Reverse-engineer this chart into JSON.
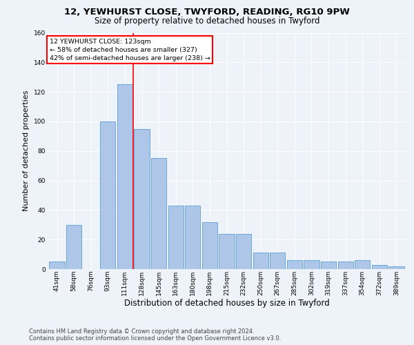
{
  "title_line1": "12, YEWHURST CLOSE, TWYFORD, READING, RG10 9PW",
  "title_line2": "Size of property relative to detached houses in Twyford",
  "xlabel": "Distribution of detached houses by size in Twyford",
  "ylabel": "Number of detached properties",
  "bar_values": [
    5,
    30,
    0,
    100,
    125,
    95,
    75,
    43,
    43,
    32,
    24,
    24,
    11,
    11,
    6,
    6,
    5,
    5,
    6,
    3,
    2
  ],
  "bin_labels": [
    "41sqm",
    "58sqm",
    "76sqm",
    "93sqm",
    "111sqm",
    "128sqm",
    "145sqm",
    "163sqm",
    "180sqm",
    "198sqm",
    "215sqm",
    "232sqm",
    "250sqm",
    "267sqm",
    "285sqm",
    "302sqm",
    "319sqm",
    "337sqm",
    "354sqm",
    "372sqm",
    "389sqm"
  ],
  "bar_color": "#aec6e8",
  "bar_edge_color": "#5a9fd4",
  "vline_color": "red",
  "annotation_box_text": "12 YEWHURST CLOSE: 123sqm\n← 58% of detached houses are smaller (327)\n42% of semi-detached houses are larger (238) →",
  "ylim": [
    0,
    160
  ],
  "yticks": [
    0,
    20,
    40,
    60,
    80,
    100,
    120,
    140,
    160
  ],
  "footer_text": "Contains HM Land Registry data © Crown copyright and database right 2024.\nContains public sector information licensed under the Open Government Licence v3.0.",
  "bg_color": "#eef2f9",
  "grid_color": "#ffffff",
  "title_fontsize": 9.5,
  "subtitle_fontsize": 8.5,
  "axis_label_fontsize": 8,
  "tick_fontsize": 6.5,
  "footer_fontsize": 6
}
